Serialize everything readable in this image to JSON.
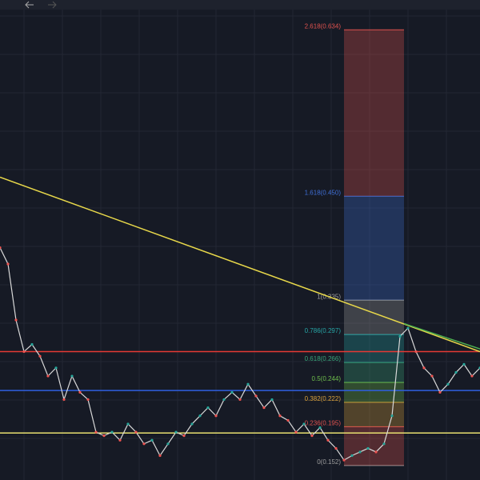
{
  "chart_data": {
    "type": "line",
    "ylim": [
      0.136,
      0.667
    ],
    "values": [
      0.393,
      0.375,
      0.313,
      0.278,
      0.286,
      0.273,
      0.251,
      0.26,
      0.225,
      0.251,
      0.233,
      0.225,
      0.189,
      0.185,
      0.189,
      0.18,
      0.198,
      0.189,
      0.176,
      0.18,
      0.163,
      0.176,
      0.189,
      0.185,
      0.198,
      0.207,
      0.216,
      0.207,
      0.225,
      0.233,
      0.225,
      0.242,
      0.229,
      0.216,
      0.225,
      0.207,
      0.202,
      0.189,
      0.198,
      0.185,
      0.194,
      0.18,
      0.171,
      0.158,
      0.163,
      0.167,
      0.171,
      0.167,
      0.176,
      0.207,
      0.295,
      0.304,
      0.278,
      0.26,
      0.251,
      0.233,
      0.242,
      0.255,
      0.264,
      0.251,
      0.26
    ],
    "color": "#d9d9d9",
    "fib_levels": [
      {
        "label": "0(0.152)",
        "value": 0.152,
        "color": "#9e9e9e"
      },
      {
        "label": "0.236(0.195)",
        "value": 0.195,
        "color": "#e0524f"
      },
      {
        "label": "0.382(0.222)",
        "value": 0.222,
        "color": "#d9a13b"
      },
      {
        "label": "0.5(0.244)",
        "value": 0.244,
        "color": "#6fbf4c"
      },
      {
        "label": "0.618(0.266)",
        "value": 0.266,
        "color": "#3aa57a"
      },
      {
        "label": "0.786(0.297)",
        "value": 0.297,
        "color": "#27a6a6"
      },
      {
        "label": "1(0.335)",
        "value": 0.335,
        "color": "#9e9e9e"
      },
      {
        "label": "1.618(0.450)",
        "value": 0.45,
        "color": "#3f6fd8"
      },
      {
        "label": "2.618(0.634)",
        "value": 0.634,
        "color": "#e0524f"
      }
    ],
    "horizontal_lines": [
      {
        "value": 0.278,
        "color": "#e53935"
      },
      {
        "value": 0.235,
        "color": "#2f5fe0"
      },
      {
        "value": 0.188,
        "color": "#e8e070"
      }
    ],
    "trend_lines": [
      {
        "values": [
          0.471,
          0.278
        ],
        "color": "#e8d84a"
      },
      {
        "values": [
          0.309,
          0.281
        ],
        "color": "#4caf50"
      }
    ]
  }
}
